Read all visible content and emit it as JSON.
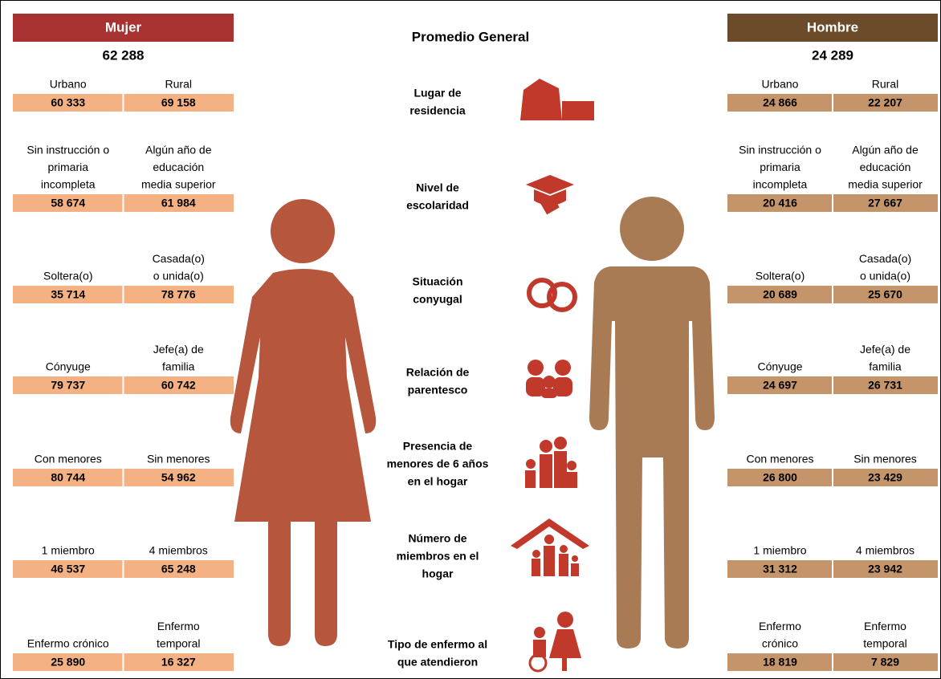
{
  "center": {
    "title": "Promedio General",
    "categories": [
      [
        "Lugar de",
        "residencia"
      ],
      [
        "Nivel de",
        "escolaridad"
      ],
      [
        "Situación",
        "conyugal"
      ],
      [
        "Relación de",
        "parentesco"
      ],
      [
        "Presencia de",
        "menores de 6 años",
        "en el hogar"
      ],
      [
        "Número de",
        "miembros en el",
        "hogar"
      ],
      [
        "Tipo de enfermo al",
        "que atendieron"
      ]
    ]
  },
  "women": {
    "title": "Mujer",
    "average": "62 288",
    "rows": [
      {
        "labels": [
          [
            "Urbano"
          ],
          [
            "Rural"
          ]
        ],
        "values": [
          "60 333",
          "69 158"
        ]
      },
      {
        "labels": [
          [
            "Sin instrucción o",
            "primaria",
            "incompleta"
          ],
          [
            "Algún año de",
            "educación",
            "media superior"
          ]
        ],
        "values": [
          "58 674",
          "61 984"
        ]
      },
      {
        "labels": [
          [
            "Soltera(o)"
          ],
          [
            "Casada(o)",
            "o unida(o)"
          ]
        ],
        "values": [
          "35 714",
          "78 776"
        ]
      },
      {
        "labels": [
          [
            "Cónyuge"
          ],
          [
            "Jefe(a) de",
            "familia"
          ]
        ],
        "values": [
          "79 737",
          "60 742"
        ]
      },
      {
        "labels": [
          [
            "Con menores"
          ],
          [
            "Sin menores"
          ]
        ],
        "values": [
          "80 744",
          "54 962"
        ]
      },
      {
        "labels": [
          [
            "1 miembro"
          ],
          [
            "4 miembros"
          ]
        ],
        "values": [
          "46 537",
          "65 248"
        ]
      },
      {
        "labels": [
          [
            "Enfermo crónico"
          ],
          [
            "Enfermo",
            "temporal"
          ]
        ],
        "values": [
          "25 890",
          "16 327"
        ]
      }
    ]
  },
  "men": {
    "title": "Hombre",
    "average": "24 289",
    "rows": [
      {
        "labels": [
          [
            "Urbano"
          ],
          [
            "Rural"
          ]
        ],
        "values": [
          "24 866",
          "22 207"
        ]
      },
      {
        "labels": [
          [
            "Sin instrucción o",
            "primaria",
            "incompleta"
          ],
          [
            "Algún año de",
            "educación",
            "media superior"
          ]
        ],
        "values": [
          "20 416",
          "27 667"
        ]
      },
      {
        "labels": [
          [
            "Soltera(o)"
          ],
          [
            "Casada(o)",
            "o unida(o)"
          ]
        ],
        "values": [
          "20 689",
          "25 670"
        ]
      },
      {
        "labels": [
          [
            "Cónyuge"
          ],
          [
            "Jefe(a) de",
            "familia"
          ]
        ],
        "values": [
          "24 697",
          "26 731"
        ]
      },
      {
        "labels": [
          [
            "Con menores"
          ],
          [
            "Sin menores"
          ]
        ],
        "values": [
          "26 800",
          "23 429"
        ]
      },
      {
        "labels": [
          [
            "1 miembro"
          ],
          [
            "4 miembros"
          ]
        ],
        "values": [
          "31 312",
          "23 942"
        ]
      },
      {
        "labels": [
          [
            "Enfermo",
            "crónico"
          ],
          [
            "Enfermo",
            "temporal"
          ]
        ],
        "values": [
          "18 819",
          "7 829"
        ]
      }
    ]
  }
}
